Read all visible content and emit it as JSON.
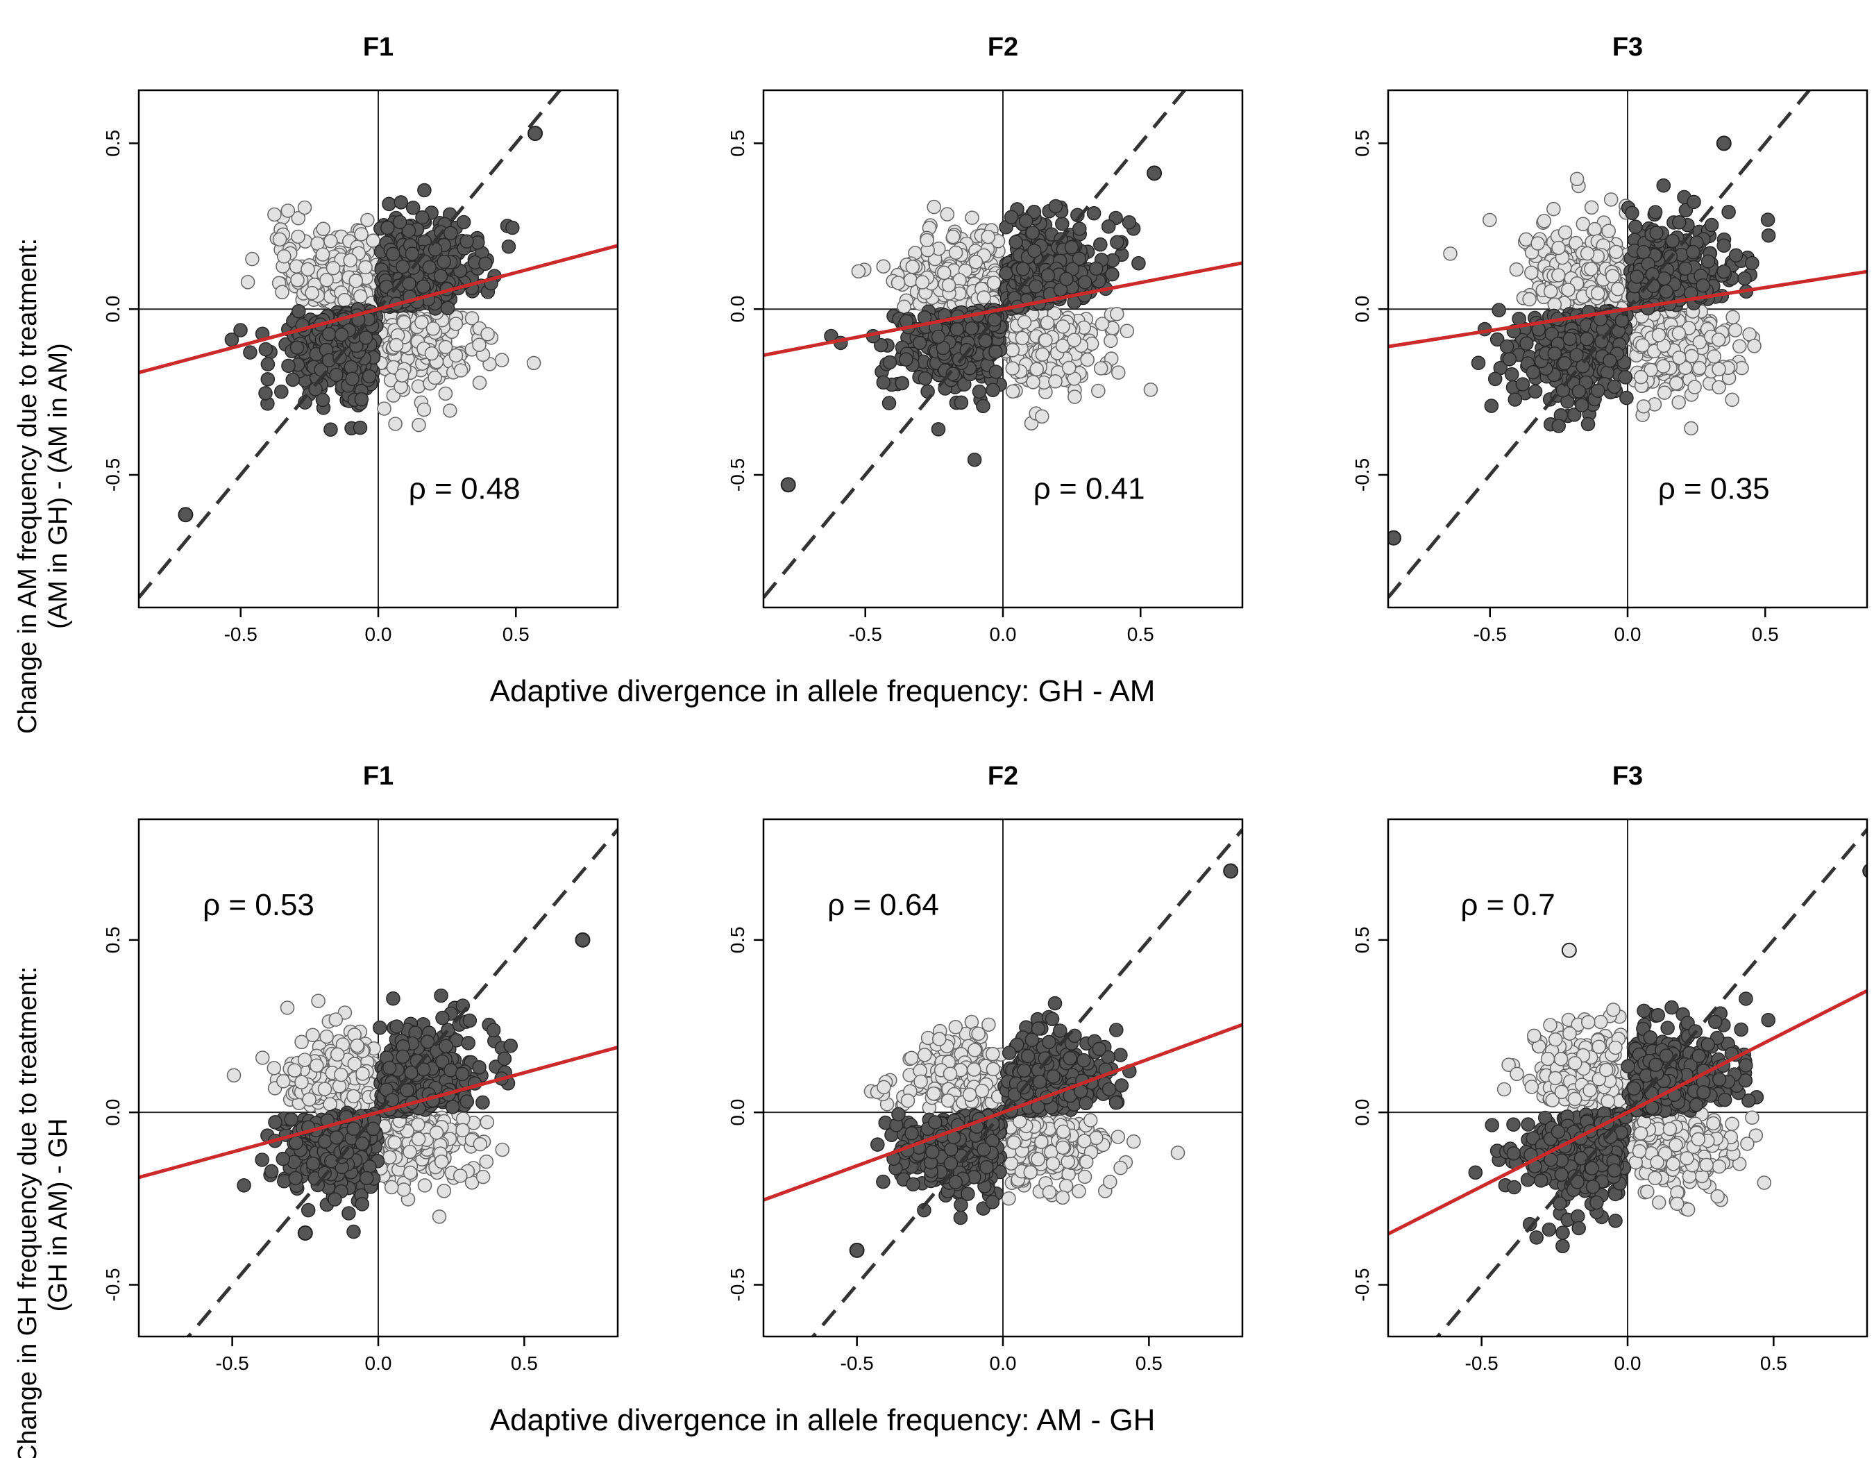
{
  "figure": {
    "rows": [
      {
        "xlabel": "Adaptive divergence in allele frequency: GH - AM",
        "ylabel_line1": "Change in AM frequency due to treatment:",
        "ylabel_line2": "(AM in GH) - (AM in AM)"
      },
      {
        "xlabel": "Adaptive divergence in allele frequency: AM - GH",
        "ylabel_line1": "Change in GH frequency due to treatment:",
        "ylabel_line2": "(GH in AM) - GH"
      }
    ]
  },
  "colors": {
    "concordant_points": "#555555",
    "discordant_points": "#e2e2e2",
    "regression_line": "#cc2a2a",
    "identity_line": "#333333"
  },
  "chart_data": [
    {
      "type": "scatter",
      "row": 0,
      "col": 0,
      "title": "F1",
      "rho_label": "ρ = 0.48",
      "slope": 0.22,
      "xlim": [
        -0.87,
        0.87
      ],
      "ylim": [
        -0.9,
        0.66
      ],
      "xticks": [
        "-0.5",
        "0.0",
        "0.5"
      ],
      "yticks": [
        "-0.5",
        "0.0",
        "0.5"
      ],
      "rho_pos": "bottom-right",
      "spread_x": 0.27,
      "spread_y": 0.2,
      "seed": 11,
      "outliers": [
        [
          -0.7,
          -0.62
        ],
        [
          0.57,
          0.53
        ]
      ]
    },
    {
      "type": "scatter",
      "row": 0,
      "col": 1,
      "title": "F2",
      "rho_label": "ρ = 0.41",
      "slope": 0.16,
      "xlim": [
        -0.87,
        0.87
      ],
      "ylim": [
        -0.9,
        0.66
      ],
      "xticks": [
        "-0.5",
        "0.0",
        "0.5"
      ],
      "yticks": [
        "-0.5",
        "0.0",
        "0.5"
      ],
      "rho_pos": "bottom-right",
      "spread_x": 0.29,
      "spread_y": 0.19,
      "seed": 23,
      "outliers": [
        [
          -0.78,
          -0.53
        ],
        [
          0.55,
          0.41
        ]
      ]
    },
    {
      "type": "scatter",
      "row": 0,
      "col": 2,
      "title": "F3",
      "rho_label": "ρ = 0.35",
      "slope": 0.13,
      "xlim": [
        -0.87,
        0.87
      ],
      "ylim": [
        -0.9,
        0.66
      ],
      "xticks": [
        "-0.5",
        "0.0",
        "0.5"
      ],
      "yticks": [
        "-0.5",
        "0.0",
        "0.5"
      ],
      "rho_pos": "bottom-right",
      "spread_x": 0.3,
      "spread_y": 0.2,
      "seed": 37,
      "outliers": [
        [
          -0.85,
          -0.69
        ],
        [
          0.35,
          0.5
        ]
      ]
    },
    {
      "type": "scatter",
      "row": 1,
      "col": 0,
      "title": "F1",
      "rho_label": "ρ = 0.53",
      "slope": 0.23,
      "xlim": [
        -0.82,
        0.82
      ],
      "ylim": [
        -0.65,
        0.85
      ],
      "xticks": [
        "-0.5",
        "0.0",
        "0.5"
      ],
      "yticks": [
        "-0.5",
        "0.0",
        "0.5"
      ],
      "rho_pos": "top-left",
      "spread_x": 0.25,
      "spread_y": 0.17,
      "seed": 41,
      "outliers": [
        [
          0.7,
          0.5
        ],
        [
          -0.25,
          -0.35
        ]
      ]
    },
    {
      "type": "scatter",
      "row": 1,
      "col": 1,
      "title": "F2",
      "rho_label": "ρ = 0.64",
      "slope": 0.31,
      "xlim": [
        -0.82,
        0.82
      ],
      "ylim": [
        -0.65,
        0.85
      ],
      "xticks": [
        "-0.5",
        "0.0",
        "0.5"
      ],
      "yticks": [
        "-0.5",
        "0.0",
        "0.5"
      ],
      "rho_pos": "top-left",
      "spread_x": 0.27,
      "spread_y": 0.17,
      "seed": 53,
      "outliers": [
        [
          0.78,
          0.7
        ],
        [
          -0.5,
          -0.4
        ]
      ]
    },
    {
      "type": "scatter",
      "row": 1,
      "col": 2,
      "title": "F3",
      "rho_label": "ρ = 0.7",
      "slope": 0.43,
      "xlim": [
        -0.82,
        0.82
      ],
      "ylim": [
        -0.65,
        0.85
      ],
      "xticks": [
        "-0.5",
        "0.0",
        "0.5"
      ],
      "yticks": [
        "-0.5",
        "0.0",
        "0.5"
      ],
      "rho_pos": "top-left",
      "spread_x": 0.28,
      "spread_y": 0.19,
      "seed": 67,
      "outliers": [
        [
          0.83,
          0.7
        ],
        [
          -0.2,
          0.47
        ]
      ]
    }
  ]
}
